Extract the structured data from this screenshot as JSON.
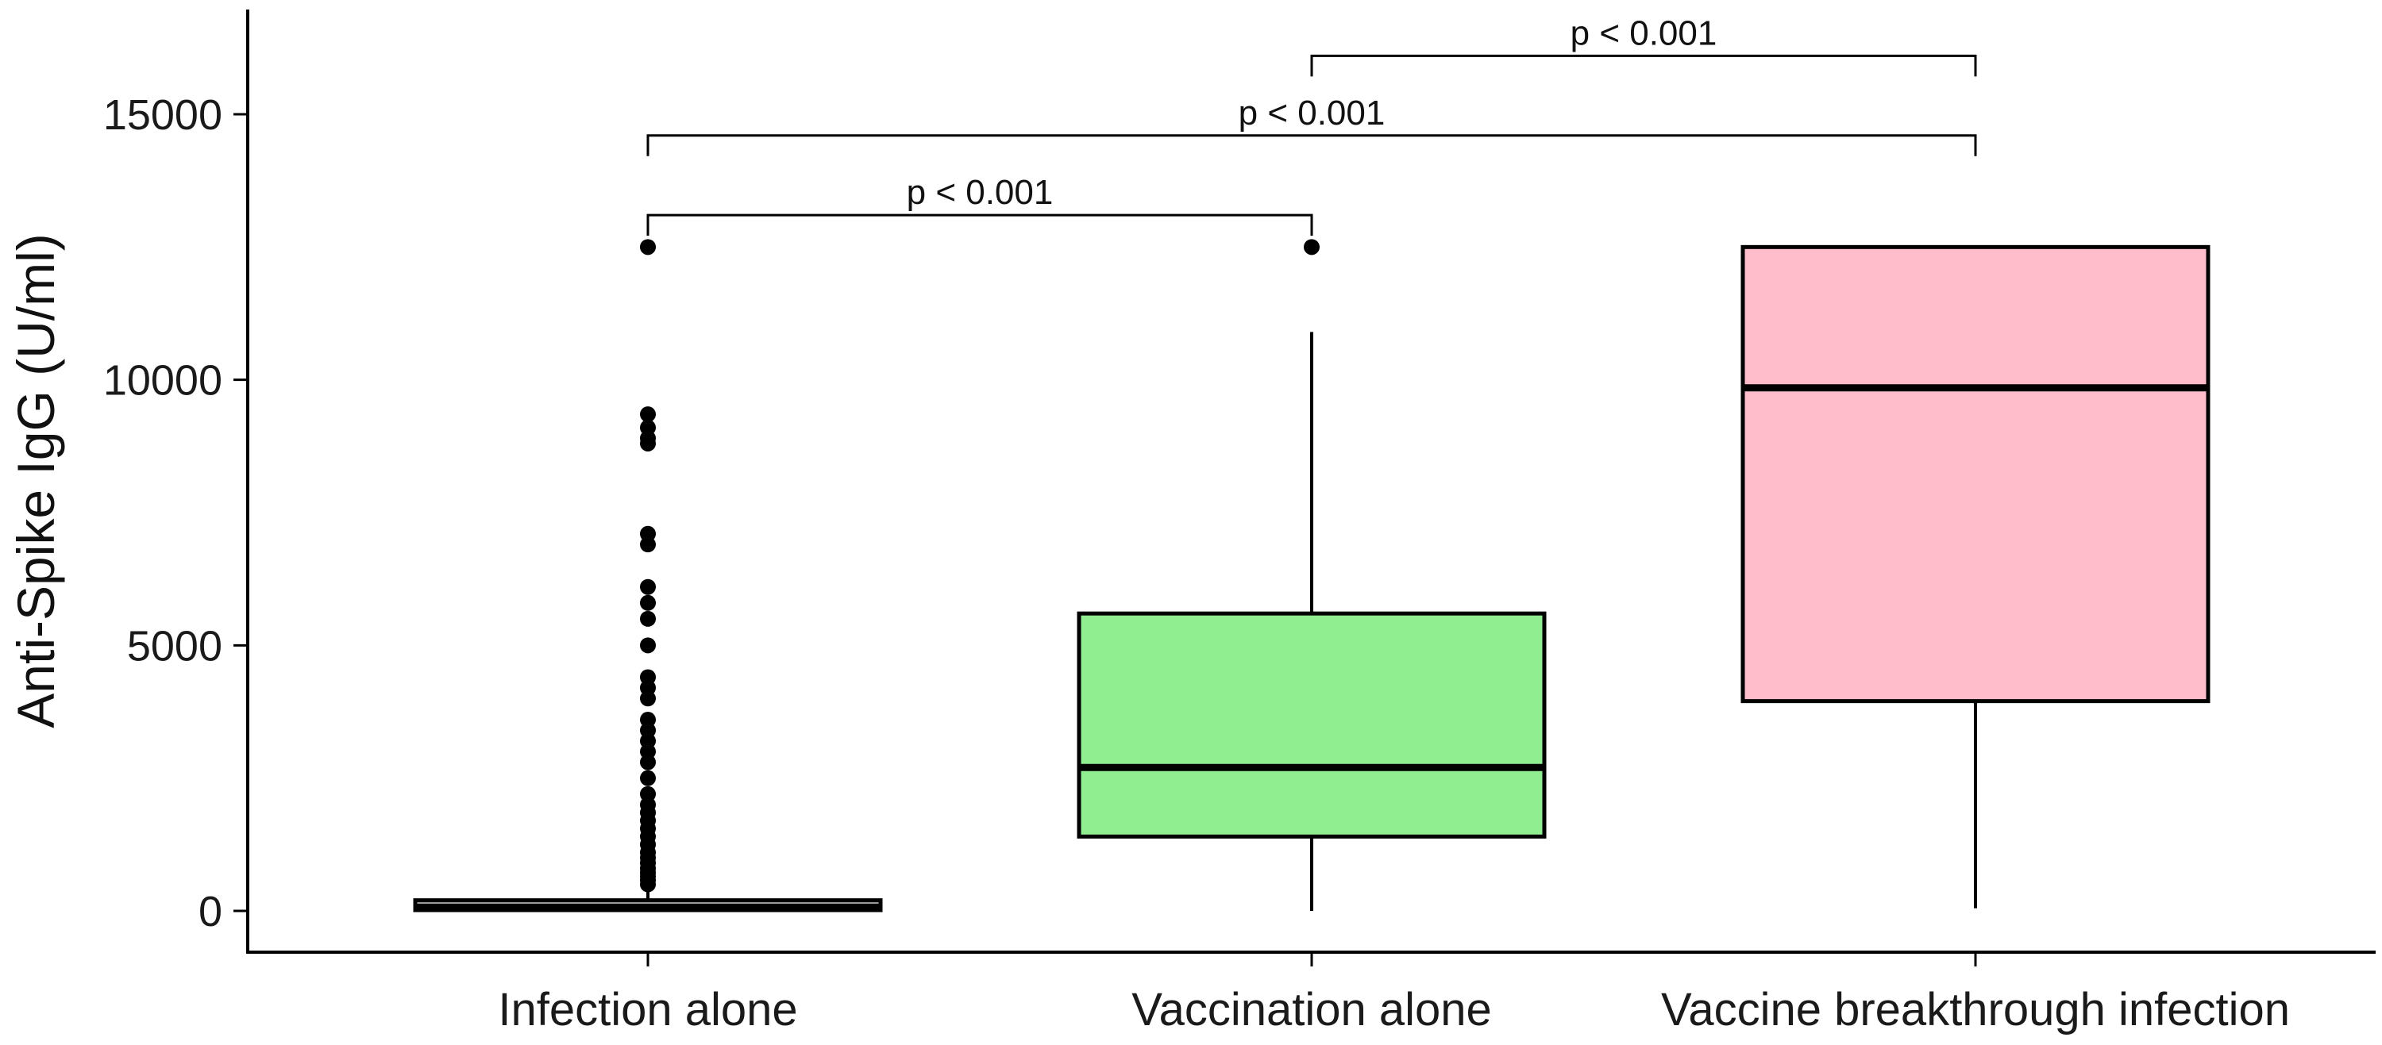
{
  "chart_data": {
    "type": "box",
    "ylabel": "Anti-Spike IgG (U/ml)",
    "xlabel": "",
    "ylim": [
      -800,
      16800
    ],
    "yticks": [
      0,
      5000,
      10000,
      15000
    ],
    "grid": false,
    "categories": [
      "Infection alone",
      "Vaccination alone",
      "Vaccine breakthrough infection"
    ],
    "boxes": [
      {
        "category": "Infection alone",
        "color": "#b0b0b0",
        "whisker_low": 0,
        "q1": 15,
        "median": 70,
        "q3": 200,
        "whisker_high": 400,
        "outliers": [
          500,
          580,
          650,
          720,
          800,
          900,
          1000,
          1100,
          1250,
          1400,
          1550,
          1700,
          1850,
          2000,
          2200,
          2500,
          2800,
          3000,
          3200,
          3400,
          3600,
          4000,
          4200,
          4400,
          5000,
          5500,
          5800,
          6100,
          6900,
          7100,
          8800,
          8900,
          9100,
          9350,
          12500
        ]
      },
      {
        "category": "Vaccination alone",
        "color": "#90ee90",
        "whisker_low": 0,
        "q1": 1400,
        "median": 2700,
        "q3": 5600,
        "whisker_high": 10900,
        "outliers": [
          12500
        ]
      },
      {
        "category": "Vaccine breakthrough infection",
        "color": "#ffbccb",
        "whisker_low": 50,
        "q1": 3950,
        "median": 9850,
        "q3": 12500,
        "whisker_high": 12500,
        "outliers": []
      }
    ],
    "comparisons": [
      {
        "groups": [
          "Infection alone",
          "Vaccination alone"
        ],
        "label": "p < 0.001",
        "y": 13100
      },
      {
        "groups": [
          "Infection alone",
          "Vaccine breakthrough infection"
        ],
        "label": "p < 0.001",
        "y": 14600
      },
      {
        "groups": [
          "Vaccination alone",
          "Vaccine breakthrough infection"
        ],
        "label": "p < 0.001",
        "y": 16100
      }
    ]
  }
}
